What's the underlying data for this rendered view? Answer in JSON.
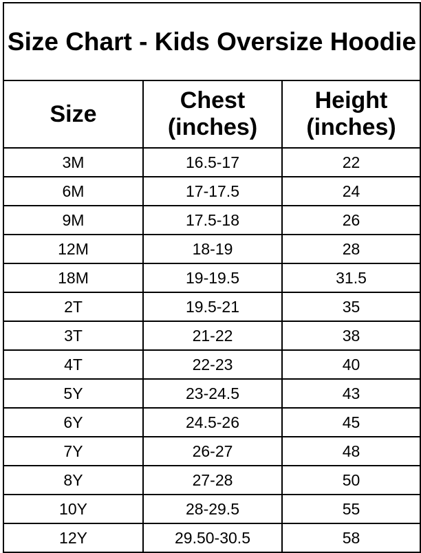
{
  "title": "Size Chart - Kids Oversize Hoodie",
  "headers": [
    "Size",
    "Chest (inches)",
    "Height (inches)"
  ],
  "rows": [
    [
      "3M",
      "16.5-17",
      "22"
    ],
    [
      "6M",
      "17-17.5",
      "24"
    ],
    [
      "9M",
      "17.5-18",
      "26"
    ],
    [
      "12M",
      "18-19",
      "28"
    ],
    [
      "18M",
      "19-19.5",
      "31.5"
    ],
    [
      "2T",
      "19.5-21",
      "35"
    ],
    [
      "3T",
      "21-22",
      "38"
    ],
    [
      "4T",
      "22-23",
      "40"
    ],
    [
      "5Y",
      "23-24.5",
      "43"
    ],
    [
      "6Y",
      "24.5-26",
      "45"
    ],
    [
      "7Y",
      "26-27",
      "48"
    ],
    [
      "8Y",
      "27-28",
      "50"
    ],
    [
      "10Y",
      "28-29.5",
      "55"
    ],
    [
      "12Y",
      "29.50-30.5",
      "58"
    ]
  ]
}
